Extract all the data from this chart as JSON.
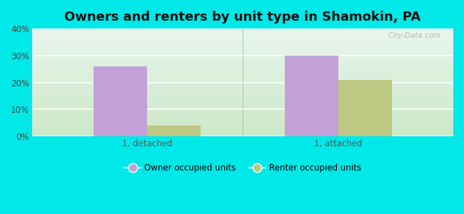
{
  "title": "Owners and renters by unit type in Shamokin, PA",
  "categories": [
    "1, detached",
    "1, attached"
  ],
  "owner_values": [
    26,
    30
  ],
  "renter_values": [
    4,
    21
  ],
  "owner_color": "#c4a0d8",
  "renter_color": "#bdc882",
  "ylim": [
    0,
    40
  ],
  "yticks": [
    0,
    10,
    20,
    30,
    40
  ],
  "ytick_labels": [
    "0%",
    "10%",
    "20%",
    "30%",
    "40%"
  ],
  "owner_label": "Owner occupied units",
  "renter_label": "Renter occupied units",
  "bg_color": "#00e8e8",
  "title_fontsize": 13,
  "bar_width": 0.28,
  "watermark": "City-Data.com"
}
